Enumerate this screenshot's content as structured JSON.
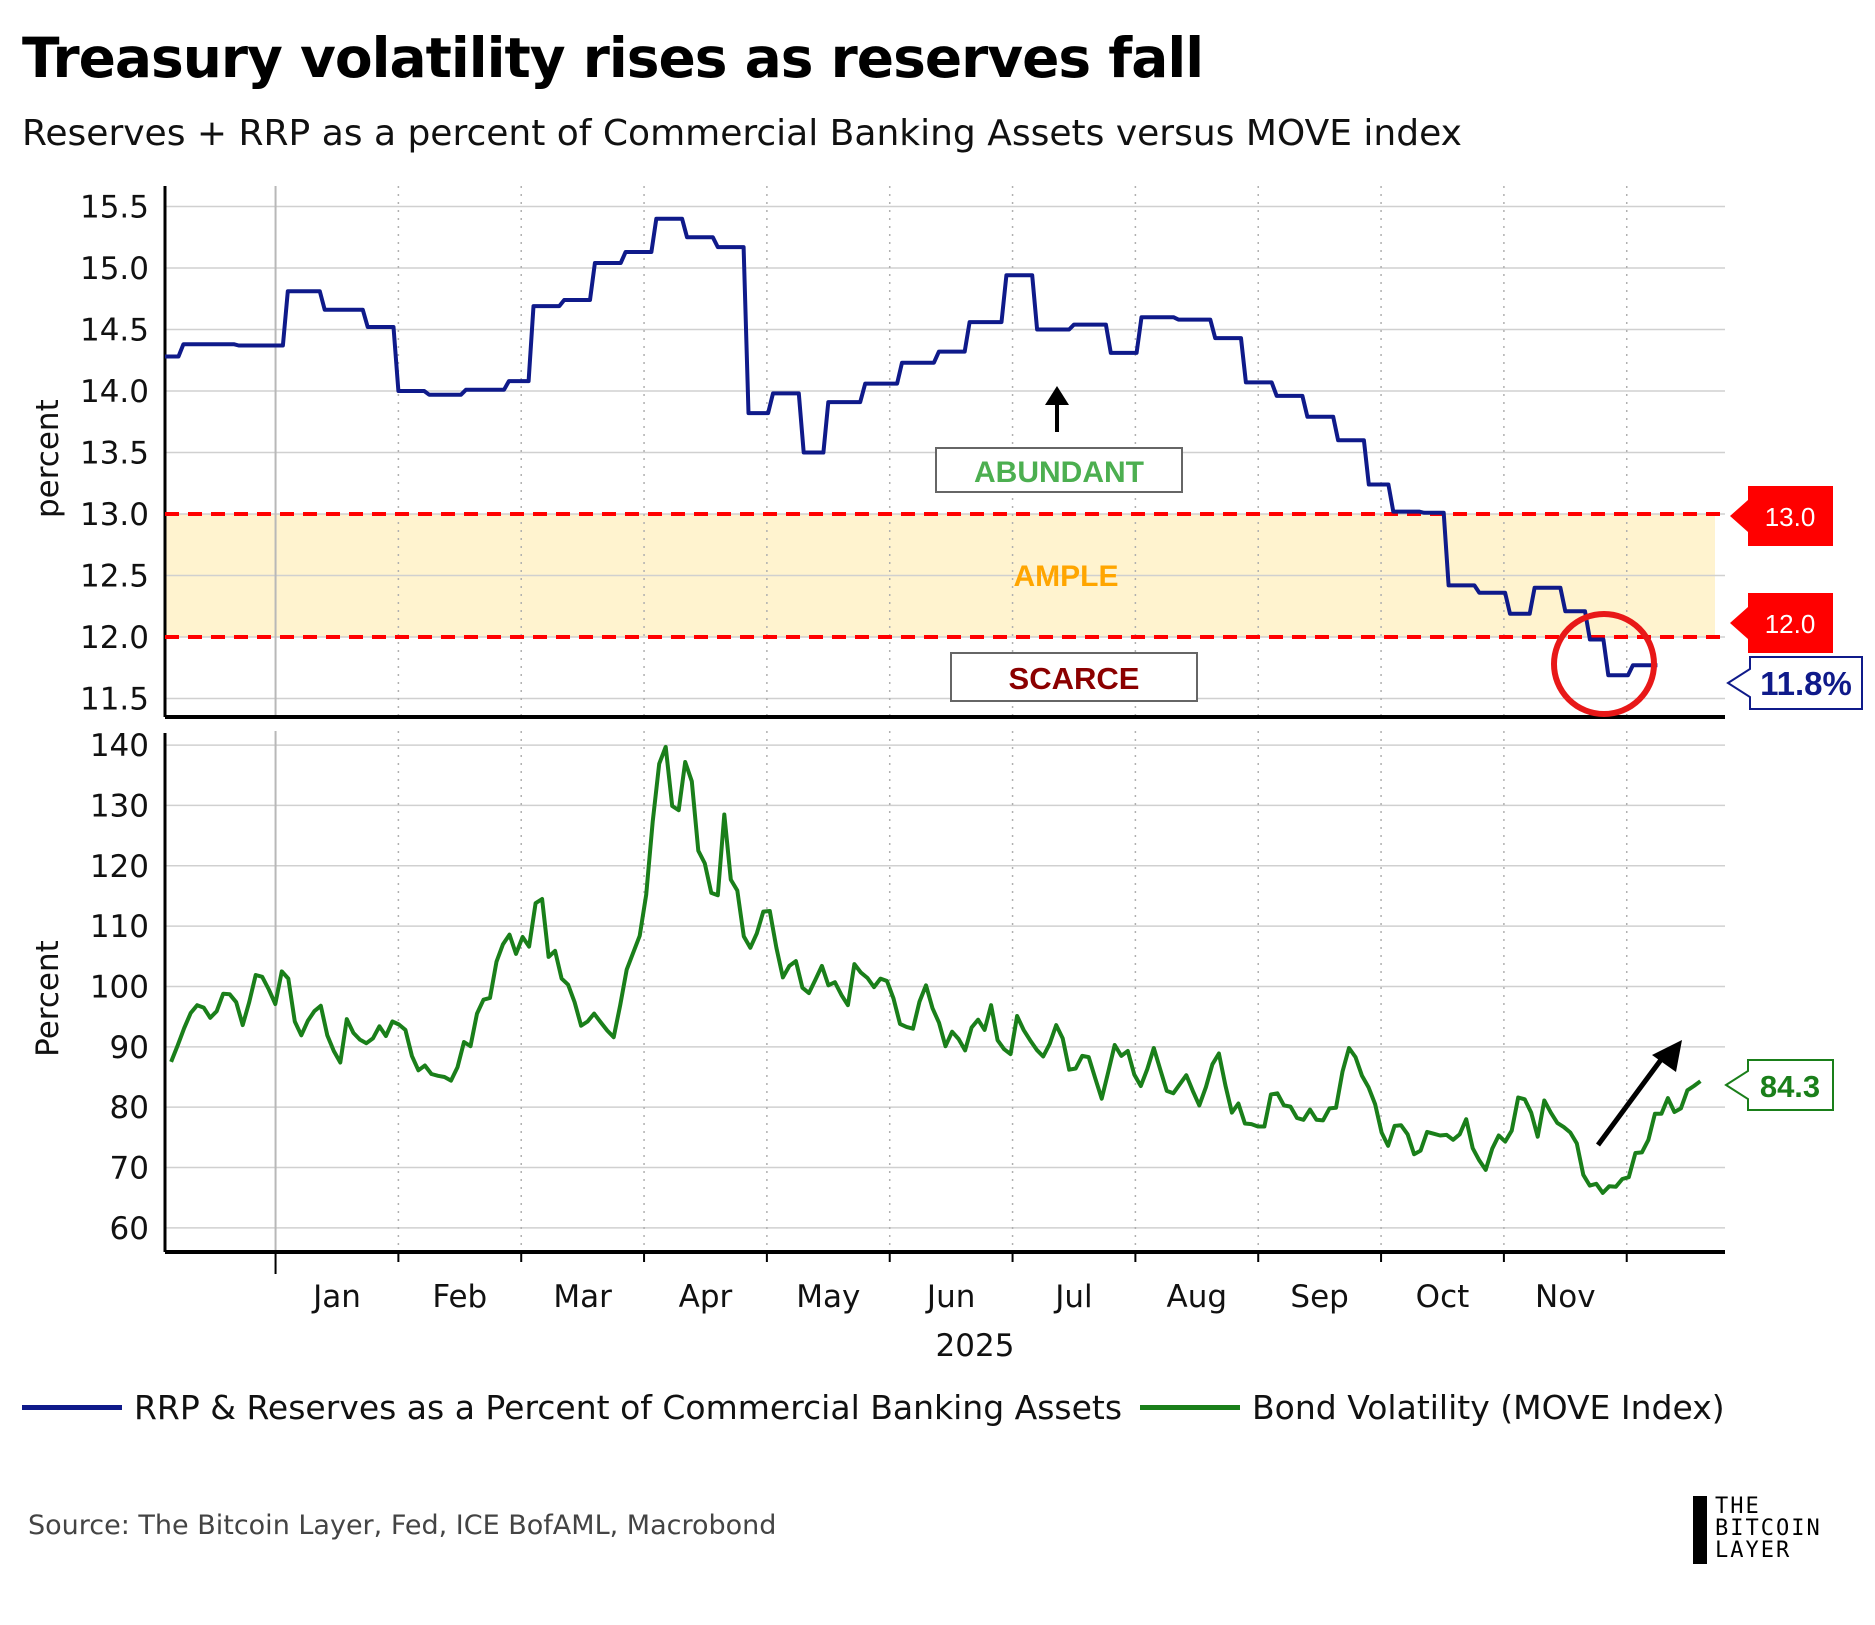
{
  "title": "Treasury volatility rises as reserves fall",
  "subtitle": "Reserves + RRP as a percent of Commercial Banking Assets versus MOVE index",
  "source": "Source: The Bitcoin Layer, Fed, ICE BofAML, Macrobond",
  "logo": {
    "line1": "THE",
    "line2": "BITCOIN",
    "line3": "LAYER"
  },
  "legend": [
    {
      "label": "RRP & Reserves as a Percent of Commercial Banking Assets",
      "color": "#0f1a8a"
    },
    {
      "label": "Bond Volatility (MOVE Index)",
      "color": "#1a7f1a"
    }
  ],
  "colors": {
    "reserves": "#0f1a8a",
    "move": "#1a7f1a",
    "threshold": "#ff0000",
    "band": "#fff3cf",
    "abundant": "#4caf50",
    "ample": "#ffa500",
    "scarce": "#8b0000"
  },
  "chart_data": [
    {
      "type": "line",
      "name": "reserves",
      "ylabel": "percent",
      "ylim": [
        11.35,
        15.65
      ],
      "yticks": [
        11.5,
        12.0,
        12.5,
        13.0,
        13.5,
        14.0,
        14.5,
        15.0,
        15.5
      ],
      "xlim": [
        -1.9,
        10.8
      ],
      "series_name": "RRP & Reserves as a Percent of Commercial Banking Assets",
      "steps": [
        [
          -1.9,
          14.28
        ],
        [
          -1.75,
          14.38
        ],
        [
          -1.3,
          14.37
        ],
        [
          -0.9,
          14.81
        ],
        [
          -0.6,
          14.66
        ],
        [
          -0.25,
          14.52
        ],
        [
          0.0,
          14.0
        ],
        [
          0.25,
          13.97
        ],
        [
          0.55,
          14.01
        ],
        [
          0.9,
          14.08
        ],
        [
          1.1,
          14.69
        ],
        [
          1.35,
          14.74
        ],
        [
          1.6,
          15.04
        ],
        [
          1.85,
          15.13
        ],
        [
          2.1,
          15.4
        ],
        [
          2.35,
          15.25
        ],
        [
          2.6,
          15.17
        ],
        [
          2.85,
          13.82
        ],
        [
          3.05,
          13.98
        ],
        [
          3.3,
          13.5
        ],
        [
          3.5,
          13.91
        ],
        [
          3.8,
          14.06
        ],
        [
          4.1,
          14.23
        ],
        [
          4.4,
          14.32
        ],
        [
          4.65,
          14.56
        ],
        [
          4.95,
          14.94
        ],
        [
          5.2,
          14.5
        ],
        [
          5.5,
          14.54
        ],
        [
          5.8,
          14.31
        ],
        [
          6.05,
          14.6
        ],
        [
          6.35,
          14.58
        ],
        [
          6.65,
          14.43
        ],
        [
          6.9,
          14.07
        ],
        [
          7.15,
          13.96
        ],
        [
          7.4,
          13.79
        ],
        [
          7.65,
          13.6
        ],
        [
          7.9,
          13.24
        ],
        [
          8.1,
          13.02
        ],
        [
          8.35,
          13.01
        ],
        [
          8.55,
          12.42
        ],
        [
          8.8,
          12.36
        ],
        [
          9.05,
          12.19
        ],
        [
          9.25,
          12.4
        ],
        [
          9.5,
          12.21
        ],
        [
          9.7,
          11.98
        ],
        [
          9.85,
          11.69
        ],
        [
          10.05,
          11.77
        ],
        [
          10.2,
          11.77
        ]
      ],
      "end": 10.25,
      "last_value_label": "11.8%",
      "thresholds": [
        {
          "value": 13.0,
          "label": "13.0"
        },
        {
          "value": 12.0,
          "label": "12.0"
        }
      ],
      "band": [
        12.0,
        13.0
      ],
      "annotations": {
        "abundant": "ABUNDANT",
        "ample": "AMPLE",
        "scarce": "SCARCE"
      }
    },
    {
      "type": "line",
      "name": "move",
      "ylabel": "Percent",
      "ylim": [
        56,
        142
      ],
      "yticks": [
        60,
        70,
        80,
        90,
        100,
        110,
        120,
        130,
        140
      ],
      "xlim": [
        -1.9,
        10.8
      ],
      "series_name": "Bond Volatility (MOVE Index)",
      "x_start": -1.85,
      "x_end": 10.6,
      "values": [
        87.5,
        90.2,
        93.1,
        95.6,
        96.9,
        96.5,
        94.8,
        95.9,
        98.8,
        98.7,
        97.4,
        93.6,
        97.4,
        101.9,
        101.6,
        99.5,
        97.1,
        102.5,
        101.3,
        94.2,
        91.9,
        94.3,
        95.9,
        96.8,
        91.9,
        89.3,
        87.4,
        94.6,
        92.3,
        91.2,
        90.6,
        91.4,
        93.4,
        91.8,
        94.2,
        93.7,
        92.8,
        88.5,
        86.1,
        86.9,
        85.5,
        85.2,
        85.0,
        84.4,
        86.6,
        90.8,
        90.1,
        95.5,
        97.8,
        98.1,
        104.1,
        107.0,
        108.6,
        105.4,
        108.2,
        106.6,
        113.8,
        114.5,
        104.9,
        105.9,
        101.3,
        100.3,
        97.4,
        93.5,
        94.2,
        95.5,
        94.1,
        92.7,
        91.6,
        96.9,
        102.8,
        105.6,
        108.4,
        115.2,
        127.3,
        136.9,
        139.7,
        129.9,
        129.2,
        137.2,
        134.0,
        122.5,
        120.4,
        115.5,
        115.1,
        128.5,
        117.7,
        115.9,
        108.3,
        106.4,
        108.8,
        112.4,
        112.5,
        106.4,
        101.5,
        103.4,
        104.2,
        99.8,
        98.9,
        101.1,
        103.4,
        100.2,
        100.7,
        98.6,
        96.9,
        103.7,
        102.3,
        101.4,
        99.9,
        101.3,
        100.9,
        98.0,
        93.8,
        93.3,
        93.0,
        97.5,
        100.2,
        96.4,
        94.0,
        90.1,
        92.5,
        91.3,
        89.4,
        93.2,
        94.5,
        92.8,
        96.9,
        91.1,
        89.6,
        88.8,
        95.1,
        92.8,
        91.1,
        89.5,
        88.4,
        90.5,
        93.6,
        91.4,
        86.2,
        86.4,
        88.5,
        88.3,
        84.8,
        81.4,
        85.8,
        90.3,
        88.5,
        89.3,
        85.4,
        83.5,
        86.3,
        89.8,
        86.2,
        82.7,
        82.3,
        83.8,
        85.3,
        82.7,
        80.3,
        83.3,
        87.1,
        88.9,
        83.6,
        79.1,
        80.6,
        77.3,
        77.2,
        76.8,
        76.8,
        82.1,
        82.3,
        80.3,
        80.1,
        78.2,
        77.9,
        79.6,
        77.9,
        77.8,
        79.8,
        79.9,
        85.9,
        89.8,
        88.3,
        85.2,
        83.3,
        80.5,
        75.8,
        73.6,
        76.9,
        77.0,
        75.5,
        72.2,
        72.8,
        75.9,
        75.6,
        75.3,
        75.4,
        74.6,
        75.5,
        78.0,
        73.2,
        71.2,
        69.6,
        73.1,
        75.3,
        74.3,
        76.1,
        81.6,
        81.3,
        79.1,
        75.1,
        81.1,
        79.1,
        77.4,
        76.7,
        75.8,
        74.0,
        68.8,
        67.0,
        67.3,
        65.8,
        66.9,
        66.8,
        68.1,
        68.4,
        72.4,
        72.5,
        74.6,
        78.9,
        78.9,
        81.5,
        79.2,
        79.8,
        82.8,
        83.5,
        84.3
      ],
      "last_value_label": "84.3"
    }
  ],
  "x_axis": {
    "months": [
      "Jan",
      "Feb",
      "Mar",
      "Apr",
      "May",
      "Jun",
      "Jul",
      "Aug",
      "Sep",
      "Oct",
      "Nov"
    ],
    "year_label": "2025"
  }
}
